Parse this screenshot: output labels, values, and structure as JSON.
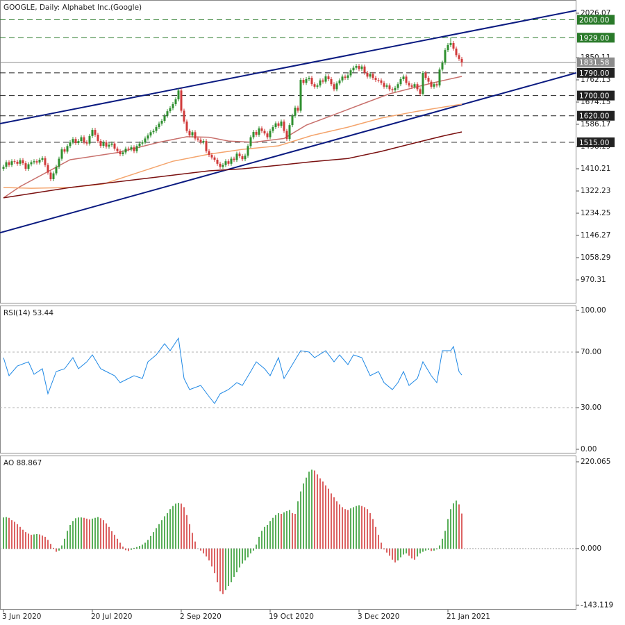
{
  "chart_data": [
    {
      "type": "candlestick",
      "title": "GOOGLE, Daily:  Alphabet Inc.(Google)",
      "xlim": [
        -1.25,
        206.25
      ],
      "ylim": [
        876.9,
        2078.3
      ],
      "yticks": [
        970.31,
        1058.29,
        1146.27,
        1234.25,
        1322.23,
        1410.21,
        1498.19,
        1586.17,
        1674.15,
        1762.13,
        1850.11,
        2026.07
      ],
      "up_color": "#2f8f2f",
      "down_color": "#d03a3a",
      "open": [
        1410,
        1418,
        1436,
        1425,
        1440,
        1438,
        1430,
        1444,
        1432,
        1410,
        1428,
        1436,
        1440,
        1435,
        1446,
        1452,
        1425,
        1395,
        1369,
        1392,
        1418,
        1450,
        1487,
        1478,
        1500,
        1515,
        1528,
        1512,
        1520,
        1535,
        1515,
        1510,
        1540,
        1564,
        1545,
        1520,
        1501,
        1515,
        1498,
        1505,
        1510,
        1490,
        1480,
        1468,
        1475,
        1490,
        1487,
        1495,
        1480,
        1500,
        1510,
        1515,
        1530,
        1542,
        1555,
        1560,
        1575,
        1589,
        1600,
        1620,
        1638,
        1650,
        1666,
        1685,
        1720,
        1640,
        1597,
        1560,
        1542,
        1555,
        1530,
        1525,
        1515,
        1520,
        1480,
        1465,
        1455,
        1446,
        1430,
        1418,
        1425,
        1440,
        1430,
        1450,
        1445,
        1470,
        1460,
        1448,
        1462,
        1500,
        1535,
        1556,
        1545,
        1570,
        1560,
        1550,
        1535,
        1560,
        1575,
        1590,
        1580,
        1597,
        1560,
        1528,
        1583,
        1620,
        1652,
        1640,
        1762,
        1750,
        1765,
        1770,
        1745,
        1735,
        1740,
        1760,
        1755,
        1776,
        1765,
        1745,
        1725,
        1748,
        1760,
        1775,
        1770,
        1780,
        1800,
        1810,
        1817,
        1805,
        1815,
        1790,
        1775,
        1785,
        1770,
        1762,
        1760,
        1750,
        1735,
        1740,
        1725,
        1721,
        1730,
        1745,
        1765,
        1775,
        1750,
        1740,
        1735,
        1745,
        1725,
        1707,
        1790,
        1770,
        1755,
        1735,
        1745,
        1740,
        1803,
        1830,
        1880,
        1900,
        1908,
        1886,
        1860,
        1845
      ],
      "high": [
        1426,
        1444,
        1444,
        1448,
        1448,
        1446,
        1452,
        1452,
        1440,
        1436,
        1444,
        1448,
        1448,
        1454,
        1460,
        1460,
        1433,
        1403,
        1400,
        1426,
        1458,
        1495,
        1495,
        1508,
        1523,
        1536,
        1536,
        1528,
        1543,
        1543,
        1523,
        1548,
        1572,
        1572,
        1553,
        1528,
        1523,
        1523,
        1513,
        1518,
        1518,
        1498,
        1488,
        1483,
        1498,
        1498,
        1503,
        1503,
        1508,
        1518,
        1523,
        1538,
        1550,
        1563,
        1568,
        1583,
        1597,
        1608,
        1628,
        1646,
        1658,
        1674,
        1693,
        1728,
        1728,
        1648,
        1605,
        1568,
        1563,
        1563,
        1538,
        1533,
        1528,
        1528,
        1488,
        1473,
        1463,
        1454,
        1438,
        1433,
        1448,
        1448,
        1458,
        1458,
        1478,
        1478,
        1468,
        1470,
        1508,
        1543,
        1564,
        1564,
        1578,
        1578,
        1568,
        1558,
        1568,
        1583,
        1598,
        1598,
        1605,
        1605,
        1568,
        1591,
        1628,
        1660,
        1660,
        1770,
        1770,
        1773,
        1778,
        1778,
        1753,
        1748,
        1768,
        1768,
        1784,
        1784,
        1773,
        1753,
        1756,
        1768,
        1783,
        1783,
        1788,
        1808,
        1818,
        1825,
        1825,
        1823,
        1823,
        1798,
        1793,
        1793,
        1778,
        1770,
        1768,
        1758,
        1748,
        1748,
        1733,
        1738,
        1753,
        1773,
        1783,
        1783,
        1758,
        1748,
        1753,
        1753,
        1733,
        1798,
        1798,
        1778,
        1763,
        1753,
        1753,
        1811,
        1838,
        1888,
        1908,
        1930,
        1916,
        1894,
        1868,
        1853
      ],
      "low": [
        1402,
        1410,
        1417,
        1417,
        1430,
        1422,
        1422,
        1424,
        1402,
        1402,
        1420,
        1428,
        1427,
        1427,
        1438,
        1417,
        1387,
        1361,
        1361,
        1384,
        1410,
        1442,
        1470,
        1470,
        1492,
        1507,
        1504,
        1504,
        1512,
        1507,
        1502,
        1502,
        1532,
        1537,
        1512,
        1493,
        1493,
        1490,
        1490,
        1497,
        1482,
        1472,
        1460,
        1460,
        1467,
        1479,
        1479,
        1472,
        1472,
        1492,
        1502,
        1507,
        1522,
        1534,
        1547,
        1552,
        1567,
        1581,
        1592,
        1612,
        1630,
        1642,
        1658,
        1677,
        1632,
        1589,
        1552,
        1534,
        1534,
        1522,
        1517,
        1507,
        1507,
        1472,
        1457,
        1447,
        1438,
        1422,
        1410,
        1410,
        1417,
        1422,
        1422,
        1437,
        1437,
        1452,
        1440,
        1440,
        1454,
        1492,
        1527,
        1537,
        1537,
        1552,
        1542,
        1527,
        1527,
        1552,
        1567,
        1572,
        1572,
        1552,
        1520,
        1520,
        1575,
        1612,
        1632,
        1632,
        1742,
        1742,
        1757,
        1737,
        1727,
        1727,
        1732,
        1747,
        1747,
        1757,
        1737,
        1717,
        1717,
        1740,
        1752,
        1762,
        1762,
        1772,
        1792,
        1802,
        1797,
        1797,
        1782,
        1767,
        1767,
        1762,
        1754,
        1752,
        1742,
        1727,
        1727,
        1717,
        1713,
        1713,
        1722,
        1737,
        1757,
        1742,
        1732,
        1727,
        1727,
        1717,
        1699,
        1699,
        1762,
        1747,
        1727,
        1727,
        1732,
        1732,
        1795,
        1822,
        1872,
        1892,
        1878,
        1852,
        1837,
        1815
      ],
      "close": [
        1418,
        1436,
        1425,
        1440,
        1438,
        1430,
        1444,
        1432,
        1410,
        1428,
        1436,
        1440,
        1435,
        1446,
        1452,
        1425,
        1395,
        1369,
        1392,
        1418,
        1450,
        1487,
        1478,
        1500,
        1515,
        1528,
        1512,
        1520,
        1535,
        1515,
        1510,
        1540,
        1564,
        1545,
        1520,
        1501,
        1515,
        1498,
        1505,
        1510,
        1490,
        1480,
        1468,
        1475,
        1490,
        1487,
        1495,
        1480,
        1500,
        1510,
        1515,
        1530,
        1542,
        1555,
        1560,
        1575,
        1589,
        1600,
        1620,
        1638,
        1650,
        1666,
        1685,
        1720,
        1640,
        1597,
        1560,
        1542,
        1555,
        1530,
        1525,
        1515,
        1520,
        1480,
        1465,
        1455,
        1446,
        1430,
        1418,
        1425,
        1440,
        1430,
        1450,
        1445,
        1470,
        1460,
        1448,
        1462,
        1500,
        1535,
        1556,
        1545,
        1570,
        1560,
        1550,
        1535,
        1560,
        1575,
        1590,
        1580,
        1597,
        1560,
        1528,
        1583,
        1620,
        1652,
        1640,
        1762,
        1750,
        1765,
        1770,
        1745,
        1735,
        1740,
        1760,
        1755,
        1776,
        1765,
        1745,
        1725,
        1748,
        1760,
        1775,
        1770,
        1780,
        1800,
        1810,
        1817,
        1805,
        1815,
        1790,
        1775,
        1785,
        1770,
        1762,
        1760,
        1750,
        1735,
        1740,
        1725,
        1721,
        1730,
        1745,
        1765,
        1775,
        1750,
        1740,
        1735,
        1745,
        1725,
        1707,
        1790,
        1770,
        1755,
        1735,
        1745,
        1740,
        1803,
        1830,
        1880,
        1900,
        1908,
        1886,
        1860,
        1845,
        1831.58
      ],
      "series": [
        {
          "color": "#c8706c",
          "x": [
            0,
            6,
            24,
            41,
            56,
            66,
            74,
            81,
            90,
            101,
            109,
            119,
            129,
            139,
            149,
            156,
            165
          ],
          "values": [
            1295,
            1340,
            1446,
            1474,
            1515,
            1537,
            1535,
            1520,
            1515,
            1530,
            1583,
            1624,
            1666,
            1707,
            1735,
            1754,
            1776
          ]
        },
        {
          "color": "#f4a46c",
          "x": [
            0,
            10,
            24,
            36,
            49,
            61,
            74,
            86,
            99,
            111,
            124,
            136,
            149,
            165
          ],
          "values": [
            1336,
            1333,
            1336,
            1350,
            1397,
            1440,
            1468,
            1487,
            1501,
            1542,
            1575,
            1611,
            1638,
            1666
          ]
        },
        {
          "color": "#7a1010",
          "x": [
            0,
            24,
            49,
            74,
            86,
            99,
            111,
            124,
            136,
            149,
            159,
            165
          ],
          "values": [
            1295,
            1336,
            1369,
            1402,
            1410,
            1424,
            1438,
            1451,
            1479,
            1515,
            1542,
            1556
          ]
        }
      ],
      "trendlines": [
        {
          "color": "#0a1a80",
          "x": [
            -1.25,
            206.25
          ],
          "values": [
            1589,
            2037
          ]
        },
        {
          "color": "#0a1a80",
          "x": [
            -1.25,
            206.25
          ],
          "values": [
            1157,
            1790
          ]
        }
      ],
      "levels": [
        {
          "value": 2000,
          "label": "2000.00",
          "color": "#2a7a2a"
        },
        {
          "value": 1929,
          "label": "1929.00",
          "color": "#2a7a2a"
        },
        {
          "value": 1790,
          "label": "1790.00",
          "color": "#222222"
        },
        {
          "value": 1700,
          "label": "1700.00",
          "color": "#222222"
        },
        {
          "value": 1620,
          "label": "1620.00",
          "color": "#222222"
        },
        {
          "value": 1515,
          "label": "1515.00",
          "color": "#222222"
        }
      ],
      "last_price": 1831.58,
      "last_color": "#8c8c8c"
    },
    {
      "type": "line",
      "title": "RSI(14) 53.44",
      "color": "#1e88e5",
      "ylim": [
        -3,
        103.5
      ],
      "yticks": [
        {
          "value": 0,
          "label": "0.00"
        },
        {
          "value": 30,
          "label": "30.00"
        },
        {
          "value": 70,
          "label": "70.00"
        },
        {
          "value": 100,
          "label": "100.00"
        }
      ],
      "levels": [
        30,
        70
      ],
      "x": [
        0,
        2,
        5,
        9,
        11,
        14,
        16,
        19,
        22,
        25,
        27,
        30,
        32,
        35,
        37,
        40,
        42,
        45,
        47,
        50,
        52,
        55,
        58,
        60,
        63,
        65,
        67,
        71,
        74,
        76,
        78,
        81,
        84,
        86,
        89,
        91,
        94,
        96,
        99,
        101,
        104,
        107,
        110,
        112,
        116,
        119,
        121,
        124,
        126,
        129,
        132,
        135,
        137,
        140,
        142,
        144,
        146,
        149,
        151,
        154,
        156,
        158,
        161,
        162,
        164,
        165
      ],
      "values": [
        66,
        53,
        60,
        63,
        54,
        58,
        40,
        56,
        58,
        66,
        58,
        63,
        68,
        58,
        56,
        53,
        48,
        51,
        53,
        51,
        63,
        68,
        76,
        71,
        80,
        51,
        43,
        46,
        38,
        33,
        40,
        43,
        48,
        46,
        56,
        63,
        58,
        53,
        66,
        51,
        61,
        71,
        70,
        66,
        71,
        63,
        68,
        61,
        68,
        66,
        53,
        56,
        48,
        43,
        48,
        56,
        46,
        51,
        63,
        53,
        48,
        71,
        71,
        74,
        56,
        53.44
      ]
    },
    {
      "type": "bar",
      "title": "AO 88.867",
      "up_color": "#2f9a2f",
      "down_color": "#d43a3a",
      "ylim": [
        -154.9,
        235.9
      ],
      "yticks": [
        -143.119,
        {
          "value": 0,
          "label": "0.000"
        },
        220.065
      ],
      "values": [
        79,
        80,
        78,
        72,
        68,
        62,
        55,
        48,
        42,
        38,
        35,
        36,
        37,
        36,
        33,
        30,
        22,
        12,
        2,
        -8,
        -5,
        8,
        25,
        45,
        60,
        70,
        77,
        79,
        79,
        78,
        76,
        74,
        76,
        78,
        80,
        77,
        72,
        64,
        55,
        44,
        35,
        25,
        15,
        5,
        -4,
        -6,
        -3,
        2,
        4,
        7,
        10,
        15,
        22,
        32,
        42,
        52,
        62,
        72,
        82,
        90,
        100,
        108,
        114,
        116,
        114,
        105,
        85,
        62,
        40,
        18,
        0,
        -5,
        -12,
        -20,
        -30,
        -45,
        -62,
        -85,
        -108,
        -115,
        -105,
        -95,
        -85,
        -72,
        -60,
        -48,
        -38,
        -30,
        -22,
        -12,
        -5,
        10,
        30,
        45,
        55,
        60,
        70,
        78,
        85,
        90,
        88,
        92,
        95,
        98,
        90,
        88,
        120,
        145,
        165,
        180,
        195,
        200,
        198,
        188,
        178,
        170,
        160,
        152,
        140,
        130,
        120,
        112,
        105,
        100,
        98,
        102,
        105,
        108,
        110,
        108,
        105,
        100,
        90,
        75,
        55,
        35,
        15,
        -2,
        -10,
        -18,
        -28,
        -35,
        -30,
        -22,
        -15,
        -12,
        -18,
        -25,
        -28,
        -20,
        -12,
        -8,
        -5,
        -3,
        -6,
        -5,
        -2,
        8,
        25,
        45,
        75,
        100,
        115,
        122,
        112,
        88.867
      ],
      "xticks": [
        {
          "value": 0,
          "label": "3 Jun 2020"
        },
        {
          "value": 32,
          "label": "20 Jul 2020"
        },
        {
          "value": 64,
          "label": "2 Sep 2020"
        },
        {
          "value": 96,
          "label": "19 Oct 2020"
        },
        {
          "value": 128,
          "label": "3 Dec 2020"
        },
        {
          "value": 160,
          "label": "21 Jan 2021"
        }
      ]
    }
  ]
}
